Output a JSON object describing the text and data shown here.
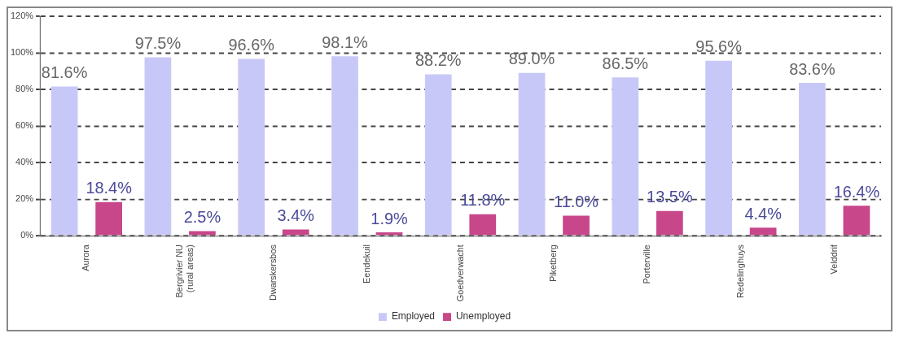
{
  "chart_data": {
    "type": "bar",
    "categories": [
      "Aurora",
      "Bergrivier NU (rural areas)",
      "Dwarskersbos",
      "Eendekuil",
      "Goedverwacht",
      "Piketberg",
      "Porterville",
      "Redelinghuys",
      "Velddrif"
    ],
    "series": [
      {
        "name": "Employed",
        "color": "#c8c8f8",
        "values": [
          81.6,
          97.5,
          96.6,
          98.1,
          88.2,
          89.0,
          86.5,
          95.6,
          83.6
        ],
        "value_labels": [
          "81.6%",
          "97.5%",
          "96.6%",
          "98.1%",
          "88.2%",
          "89.0%",
          "86.5%",
          "95.6%",
          "83.6%"
        ]
      },
      {
        "name": "Unemployed",
        "color": "#c8468a",
        "values": [
          18.4,
          2.5,
          3.4,
          1.9,
          11.8,
          11.0,
          13.5,
          4.4,
          16.4
        ],
        "value_labels": [
          "18.4%",
          "2.5%",
          "3.4%",
          "1.9%",
          "11.8%",
          "11.0%",
          "13.5%",
          "4.4%",
          "16.4%"
        ]
      }
    ],
    "ylim": [
      0,
      120
    ],
    "yticks": [
      {
        "value": 0,
        "label": "0%"
      },
      {
        "value": 20,
        "label": "20%"
      },
      {
        "value": 40,
        "label": "40%"
      },
      {
        "value": 60,
        "label": "60%"
      },
      {
        "value": 80,
        "label": "80%"
      },
      {
        "value": 100,
        "label": "100%"
      },
      {
        "value": 120,
        "label": "120%"
      }
    ],
    "grid": "y",
    "line_style": "dashed",
    "legend": "bottom"
  }
}
